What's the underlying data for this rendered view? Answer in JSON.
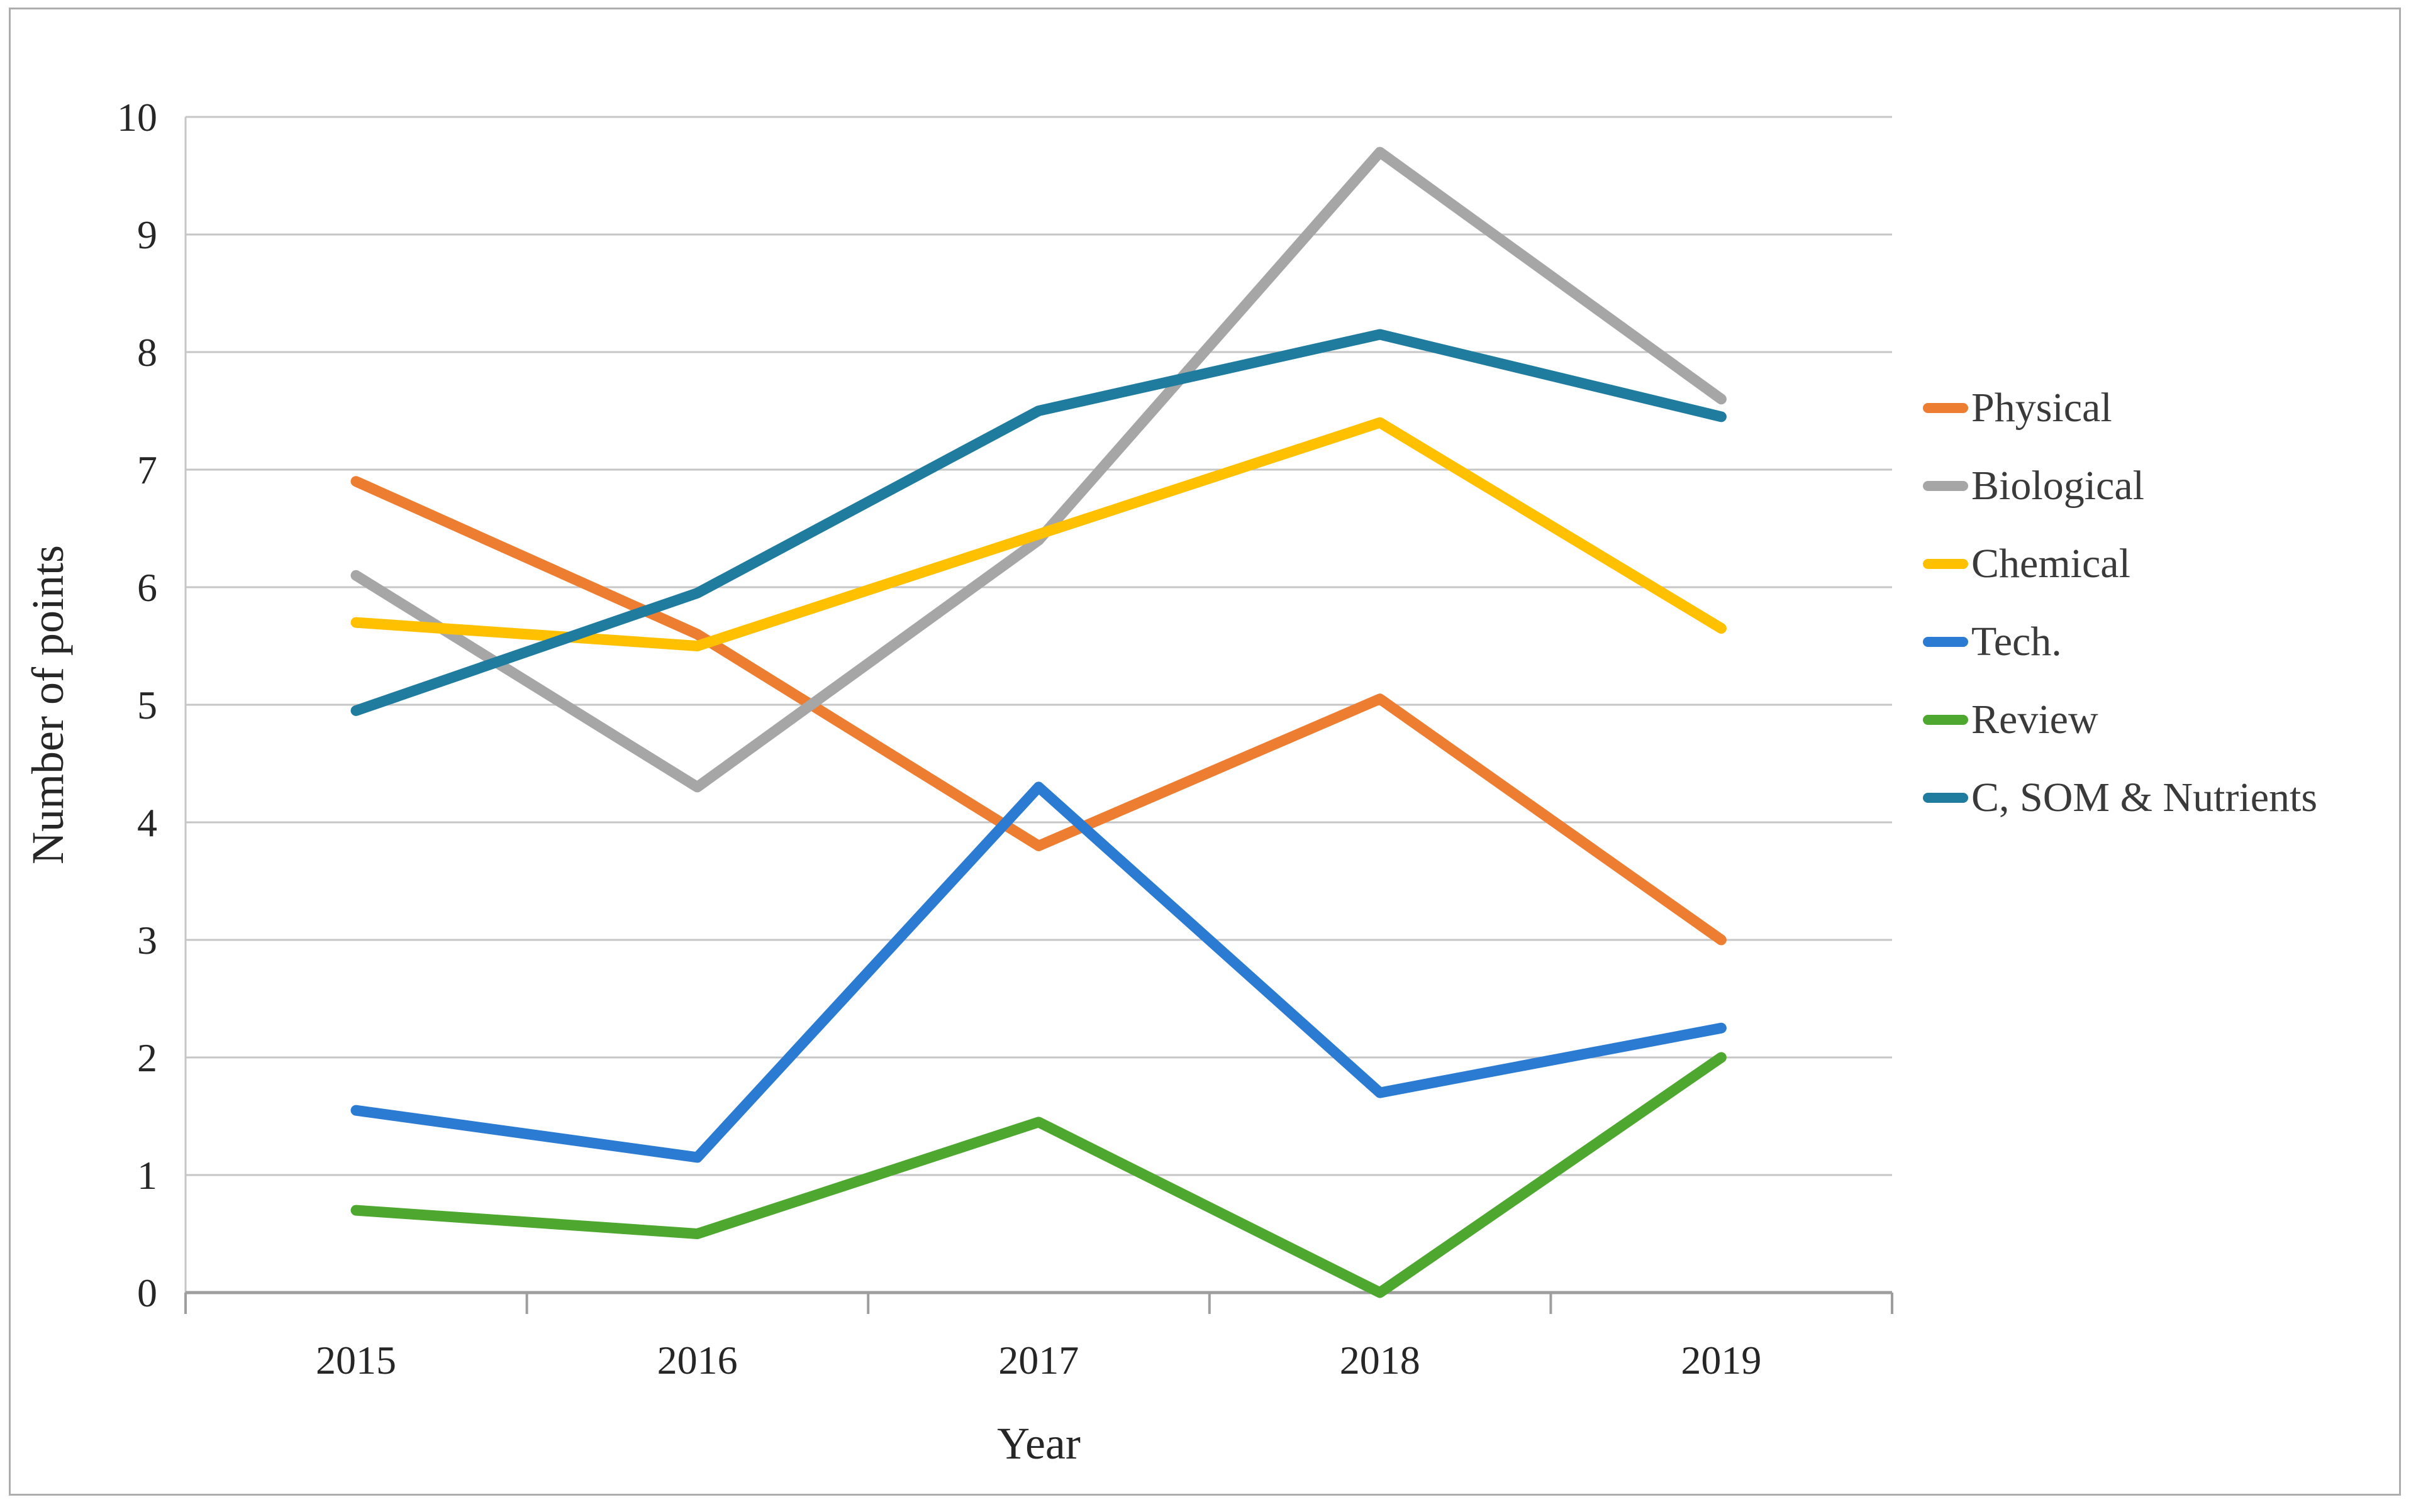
{
  "figure": {
    "border_color": "#adadad",
    "background": "#ffffff"
  },
  "chart_data": {
    "type": "line",
    "title": "",
    "xlabel": "Year",
    "ylabel": "Number of points",
    "ylim": [
      0,
      10
    ],
    "y_tick_step": 1,
    "grid": true,
    "legend_position": "right",
    "categories": [
      "2015",
      "2016",
      "2017",
      "2018",
      "2019"
    ],
    "series": [
      {
        "name": "Physical",
        "color": "#ED7D31",
        "values": [
          6.9,
          5.6,
          3.8,
          5.05,
          3.0
        ]
      },
      {
        "name": "Biological",
        "color": "#A6A6A6",
        "values": [
          6.1,
          4.3,
          6.4,
          9.7,
          7.6
        ]
      },
      {
        "name": "Chemical",
        "color": "#FFC000",
        "values": [
          5.7,
          5.5,
          6.45,
          7.4,
          5.65
        ]
      },
      {
        "name": "Tech.",
        "color": "#2B7BD3",
        "values": [
          1.55,
          1.15,
          4.3,
          1.7,
          2.25
        ]
      },
      {
        "name": "Review",
        "color": "#4EA72E",
        "values": [
          0.7,
          0.5,
          1.45,
          0.0,
          2.0
        ]
      },
      {
        "name": "C, SOM & Nutrients",
        "color": "#1F7C9F",
        "values": [
          4.95,
          5.95,
          7.5,
          8.15,
          7.45
        ]
      }
    ],
    "gridline_color": "#c6c6c6",
    "axis_line_color": "#9e9e9e"
  }
}
